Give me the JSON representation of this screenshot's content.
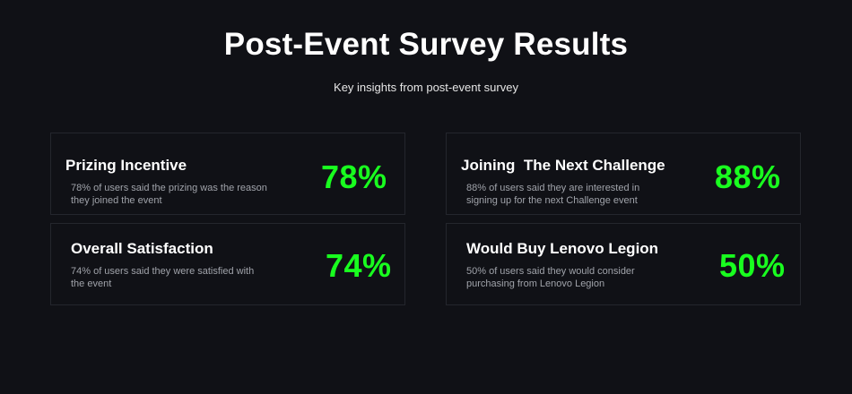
{
  "page": {
    "title": "Post-Event Survey Results",
    "subtitle": "Key insights from post-event survey"
  },
  "colors": {
    "background": "#101116",
    "card_border": "#24262d",
    "accent_green": "#19ff1f",
    "title_text": "#ffffff",
    "desc_text": "#a0a3aa"
  },
  "cards": [
    {
      "title": "Prizing Incentive",
      "description": "78% of users said the prizing was the reason they joined the event",
      "value": "78%"
    },
    {
      "title": "Joining  The Next Challenge",
      "description": "88% of users said they are interested in signing up for the next Challenge event",
      "value": "88%"
    },
    {
      "title": "Overall Satisfaction",
      "description": "74% of users said they were satisfied with the event",
      "value": "74%"
    },
    {
      "title": "Would Buy Lenovo Legion",
      "description": "50% of users said they would consider purchasing from Lenovo Legion",
      "value": "50%"
    }
  ]
}
